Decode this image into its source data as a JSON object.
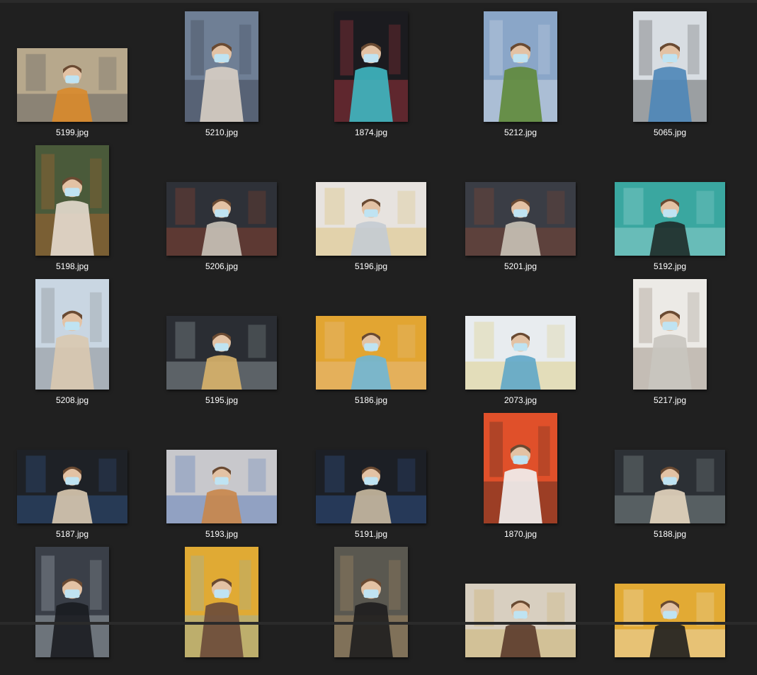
{
  "files": [
    {
      "name": "5199.jpg",
      "orientation": "landscape",
      "bg": "#b7a88c",
      "fg": "#d98a2b",
      "accent": "#3a3f4a"
    },
    {
      "name": "5210.jpg",
      "orientation": "portrait",
      "bg": "#6f7f95",
      "fg": "#d8cfc4",
      "accent": "#2a2f3a"
    },
    {
      "name": "1874.jpg",
      "orientation": "portrait",
      "bg": "#1b1b1f",
      "fg": "#3fb8c2",
      "accent": "#e0404a"
    },
    {
      "name": "5212.jpg",
      "orientation": "portrait",
      "bg": "#8aa6c8",
      "fg": "#5f8a3a",
      "accent": "#e8ecef"
    },
    {
      "name": "5065.jpg",
      "orientation": "portrait",
      "bg": "#d8dde2",
      "fg": "#4e86b8",
      "accent": "#2b2b2b"
    },
    {
      "name": "5198.jpg",
      "orientation": "portrait",
      "bg": "#4a5a3a",
      "fg": "#e6dccf",
      "accent": "#d46a2a"
    },
    {
      "name": "5206.jpg",
      "orientation": "landscape",
      "bg": "#2e3138",
      "fg": "#c9c3b8",
      "accent": "#b44a2a"
    },
    {
      "name": "5196.jpg",
      "orientation": "landscape",
      "bg": "#e7e3df",
      "fg": "#c4cbd3",
      "accent": "#d9b24a"
    },
    {
      "name": "5201.jpg",
      "orientation": "landscape",
      "bg": "#3a3d45",
      "fg": "#c9c2b6",
      "accent": "#a04a2a"
    },
    {
      "name": "5192.jpg",
      "orientation": "landscape",
      "bg": "#3aa7a0",
      "fg": "#1e2a28",
      "accent": "#bfe6e6"
    },
    {
      "name": "5208.jpg",
      "orientation": "portrait",
      "bg": "#c9d6e2",
      "fg": "#d9c9b0",
      "accent": "#6a6a6a"
    },
    {
      "name": "5195.jpg",
      "orientation": "landscape",
      "bg": "#2a2d33",
      "fg": "#d9b46a",
      "accent": "#b9c6c9"
    },
    {
      "name": "5186.jpg",
      "orientation": "landscape",
      "bg": "#e2a532",
      "fg": "#6fb7d6",
      "accent": "#e8c7a8"
    },
    {
      "name": "2073.jpg",
      "orientation": "landscape",
      "bg": "#e8ecef",
      "fg": "#5fa7c8",
      "accent": "#d9c25a"
    },
    {
      "name": "5217.jpg",
      "orientation": "portrait",
      "bg": "#eceae6",
      "fg": "#c9c5bf",
      "accent": "#7a6a5a"
    },
    {
      "name": "5187.jpg",
      "orientation": "landscape",
      "bg": "#1e2126",
      "fg": "#d9c9b0",
      "accent": "#3a6ab0"
    },
    {
      "name": "5193.jpg",
      "orientation": "landscape",
      "bg": "#c8c8cc",
      "fg": "#c9864a",
      "accent": "#2a5ab0"
    },
    {
      "name": "5191.jpg",
      "orientation": "landscape",
      "bg": "#1c1f25",
      "fg": "#c9b9a0",
      "accent": "#3a6ab8"
    },
    {
      "name": "1870.jpg",
      "orientation": "portrait",
      "bg": "#e0502a",
      "fg": "#f2f2f2",
      "accent": "#1e1e1e"
    },
    {
      "name": "5188.jpg",
      "orientation": "landscape",
      "bg": "#2c3035",
      "fg": "#e6d6bf",
      "accent": "#a9b8b8"
    },
    {
      "name": "",
      "orientation": "portrait",
      "bg": "#3a3f48",
      "fg": "#1a1c20",
      "accent": "#cfd6de"
    },
    {
      "name": "",
      "orientation": "portrait",
      "bg": "#e0aa34",
      "fg": "#6a4a3a",
      "accent": "#7ab6d6"
    },
    {
      "name": "",
      "orientation": "portrait",
      "bg": "#5a5850",
      "fg": "#1e1e1e",
      "accent": "#c9a06a"
    },
    {
      "name": "",
      "orientation": "landscape",
      "bg": "#d8cfc0",
      "fg": "#5a3a2a",
      "accent": "#c9a54a"
    },
    {
      "name": "",
      "orientation": "landscape",
      "bg": "#e2aa34",
      "fg": "#1e1e1e",
      "accent": "#f2f2f2"
    }
  ]
}
